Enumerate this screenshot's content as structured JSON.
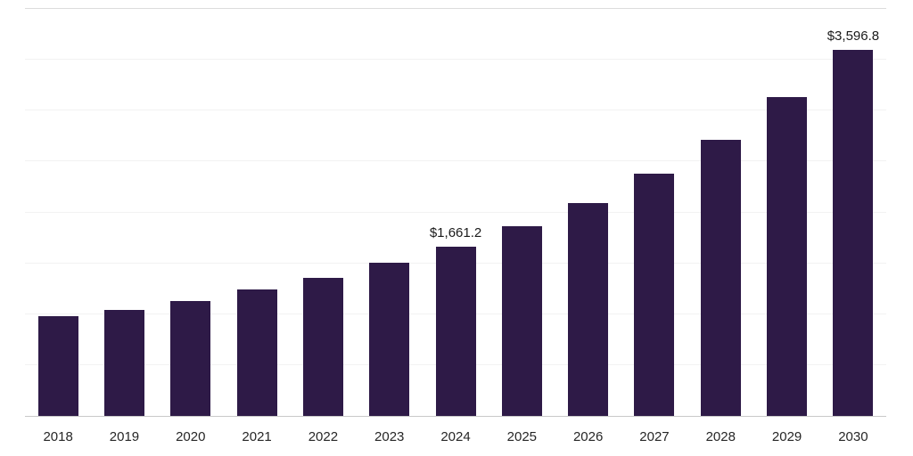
{
  "chart_data": {
    "type": "bar",
    "title": "",
    "xlabel": "",
    "ylabel": "",
    "categories": [
      "2018",
      "2019",
      "2020",
      "2021",
      "2022",
      "2023",
      "2024",
      "2025",
      "2026",
      "2027",
      "2028",
      "2029",
      "2030"
    ],
    "values": [
      980,
      1045,
      1125,
      1240,
      1360,
      1505,
      1661.2,
      1865,
      2095,
      2385,
      2715,
      3135,
      3596.8
    ],
    "data_labels": {
      "2024": "$1,661.2",
      "2030": "$3,596.8"
    },
    "ylim": [
      0,
      4000
    ],
    "grid_step": 500,
    "grid": true,
    "legend": false,
    "bar_color": "#2e1a47",
    "baseline_color": "#c9c9c9",
    "grid_color": "#f2f2f2",
    "top_gridline_color": "#dcdcdc",
    "label_color": "#1a1a1a",
    "tick_label_color": "#262626"
  }
}
